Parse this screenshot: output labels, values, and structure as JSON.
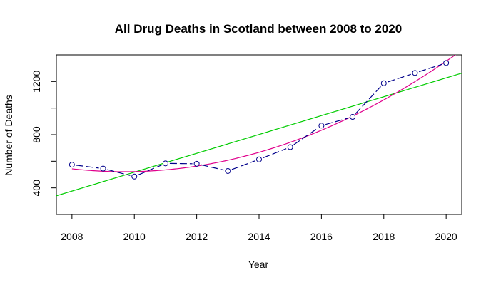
{
  "chart_data": {
    "type": "line",
    "title": "All Drug Deaths in Scotland between 2008 to 2020",
    "xlabel": "Year",
    "ylabel": "Number of Deaths",
    "xlim": [
      2007.5,
      2020.5
    ],
    "ylim": [
      200,
      1400
    ],
    "xticks": [
      2008,
      2010,
      2012,
      2014,
      2016,
      2018,
      2020
    ],
    "yticks": [
      400,
      600,
      800,
      1000,
      1200
    ],
    "ytick_labels": [
      "400",
      "",
      "800",
      "",
      "1200"
    ],
    "grid": false,
    "legend": "none",
    "series": [
      {
        "style": "dashed line with open circle markers",
        "color": "#00008B",
        "x": [
          2008,
          2009,
          2010,
          2011,
          2012,
          2013,
          2014,
          2015,
          2016,
          2017,
          2018,
          2019,
          2020
        ],
        "y": [
          574,
          545,
          485,
          584,
          581,
          527,
          614,
          706,
          868,
          934,
          1187,
          1264,
          1339
        ]
      },
      {
        "style": "linear fit",
        "color": "#00CC00",
        "fit": {
          "kind": "linear",
          "slope": 70.92,
          "intercept_at_2008": 376.1
        }
      },
      {
        "style": "quadratic fit",
        "color": "#E0008C",
        "fit": {
          "kind": "quadratic",
          "coef": [
            543.2,
            -26.06,
            7.79
          ],
          "x_origin": 2008
        }
      }
    ]
  }
}
